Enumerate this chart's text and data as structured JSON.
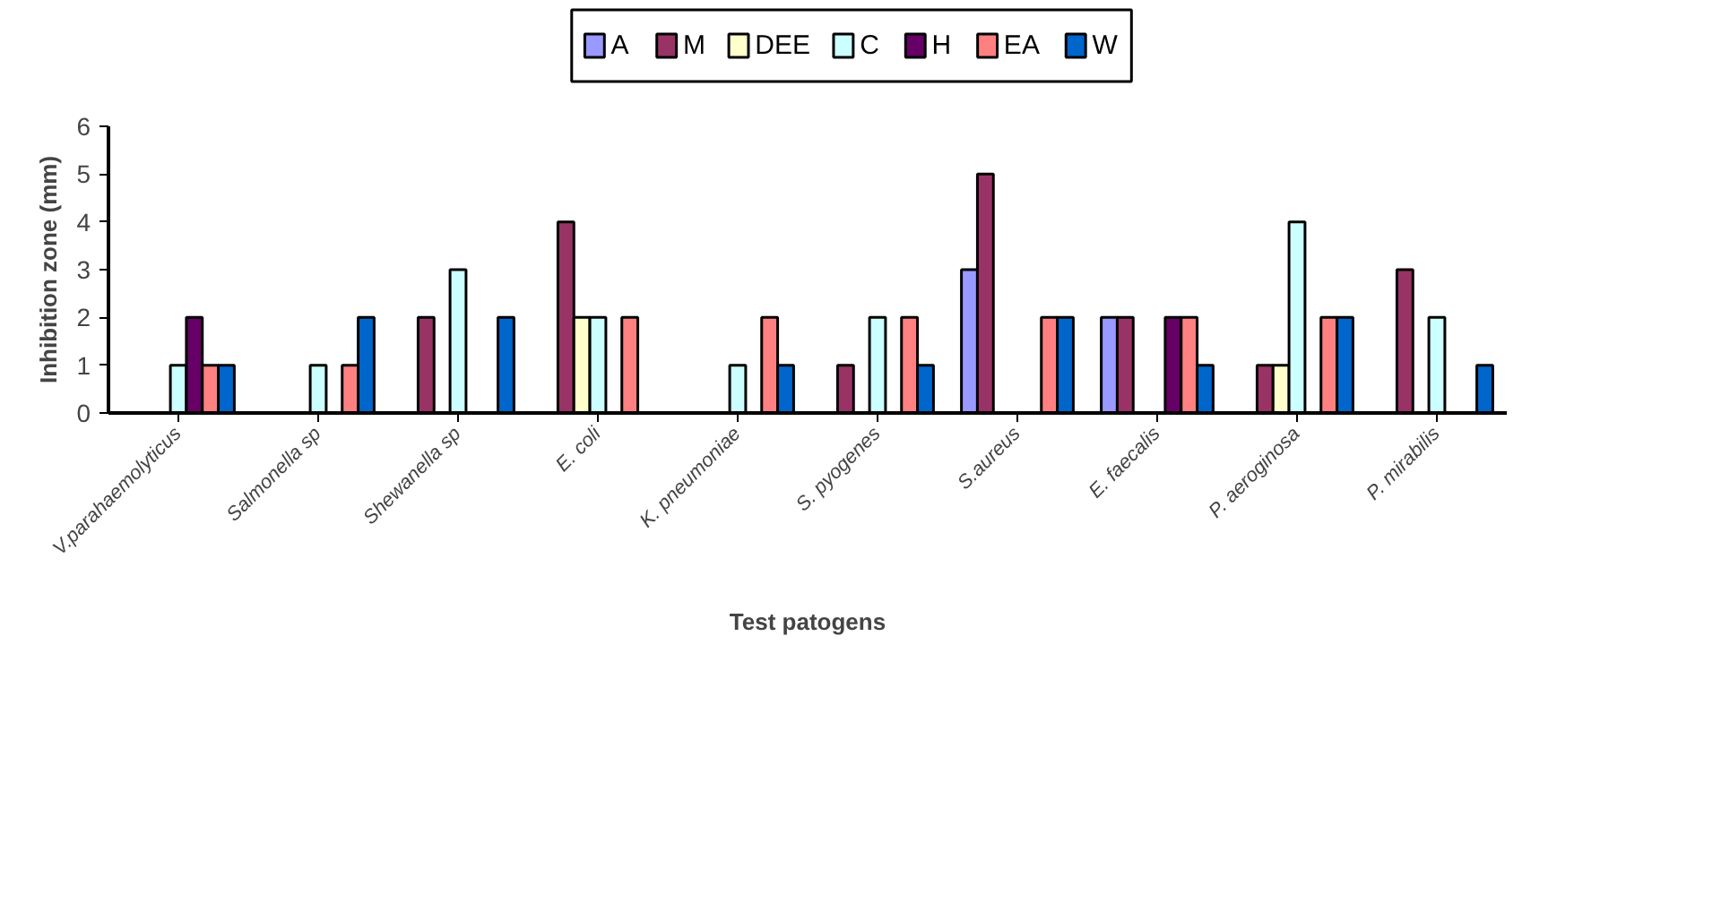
{
  "chart_data": {
    "type": "bar",
    "xlabel": "Test patogens",
    "ylabel": "Inhibition zone (mm)",
    "categories": [
      "V.parahaemolyticus",
      "Salmonella sp",
      "Shewanella sp",
      "E. coli",
      "K. pneumoniae",
      "S. pyogenes",
      "S.aureus",
      "E. faecalis",
      "P. aeroginosa",
      "P. mirabilis"
    ],
    "series": [
      {
        "name": "A",
        "color": "#9999ff",
        "values": [
          null,
          null,
          null,
          null,
          null,
          null,
          3,
          2,
          null,
          null
        ]
      },
      {
        "name": "M",
        "color": "#993366",
        "values": [
          null,
          null,
          2,
          4,
          null,
          1,
          5,
          2,
          1,
          3
        ]
      },
      {
        "name": "DEE",
        "color": "#ffffcc",
        "values": [
          null,
          null,
          null,
          2,
          null,
          null,
          null,
          null,
          1,
          null
        ]
      },
      {
        "name": "C",
        "color": "#ccffff",
        "values": [
          1,
          1,
          3,
          2,
          1,
          2,
          null,
          null,
          4,
          2
        ]
      },
      {
        "name": "H",
        "color": "#660066",
        "values": [
          2,
          null,
          null,
          null,
          null,
          null,
          null,
          2,
          null,
          null
        ]
      },
      {
        "name": "EA",
        "color": "#ff8080",
        "values": [
          1,
          1,
          null,
          2,
          2,
          2,
          2,
          2,
          2,
          null
        ]
      },
      {
        "name": "W",
        "color": "#0066cc",
        "values": [
          1,
          2,
          2,
          null,
          1,
          1,
          2,
          1,
          2,
          1
        ]
      }
    ],
    "ylim": [
      0,
      6
    ],
    "yticks": [
      0,
      1,
      2,
      3,
      4,
      5,
      6
    ],
    "grid": false,
    "legend": "top"
  }
}
